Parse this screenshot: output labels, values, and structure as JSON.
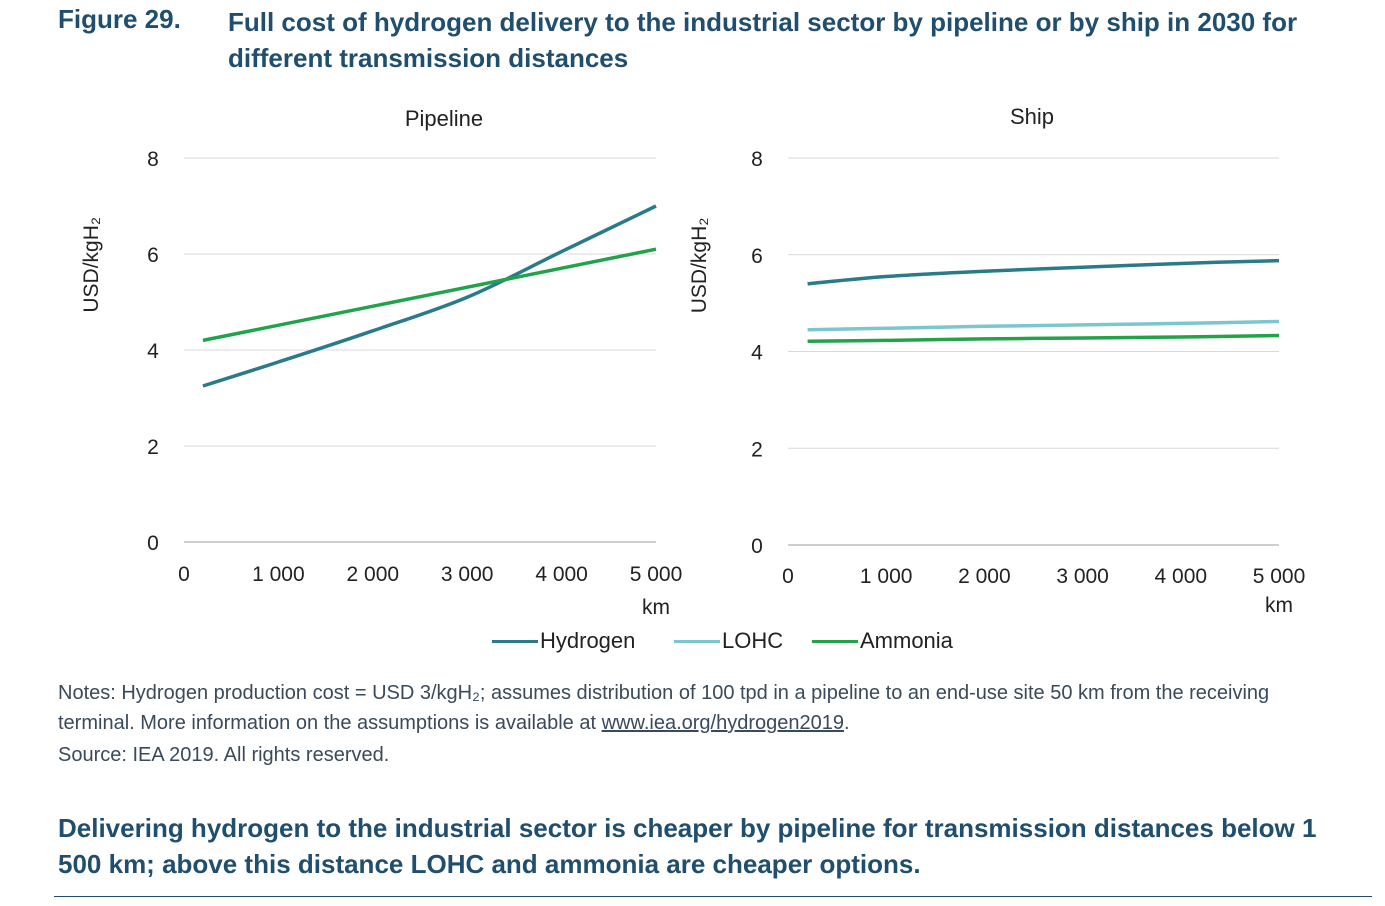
{
  "figure": {
    "number": "Figure 29.",
    "title": "Full cost of hydrogen delivery to the industrial sector by pipeline or by ship in 2030 for different transmission distances"
  },
  "colors": {
    "hydrogen": "#2a7b8a",
    "lohc": "#7cc6cf",
    "ammonia": "#22a34a",
    "grid": "#d9d9d9",
    "title": "#1f4e6e"
  },
  "chart_data": [
    {
      "type": "line",
      "title": "Pipeline",
      "xlabel": "km",
      "ylabel": "USD/kgH₂",
      "xlim": [
        0,
        5000
      ],
      "ylim": [
        0,
        8
      ],
      "xticks": [
        0,
        1000,
        2000,
        3000,
        4000,
        5000
      ],
      "xtick_labels": [
        "0",
        "1 000",
        "2 000",
        "3 000",
        "4 000",
        "5 000"
      ],
      "yticks": [
        0,
        2,
        4,
        6,
        8
      ],
      "ytick_labels": [
        "0",
        "2",
        "4",
        "6",
        "8"
      ],
      "grid": true,
      "series": [
        {
          "name": "Hydrogen",
          "color": "#2a7b8a",
          "x": [
            200,
            1000,
            2000,
            3000,
            4000,
            5000
          ],
          "y": [
            3.25,
            3.75,
            4.4,
            5.1,
            6.05,
            7.0
          ]
        },
        {
          "name": "Ammonia",
          "color": "#22a34a",
          "x": [
            200,
            5000
          ],
          "y": [
            4.2,
            6.1
          ]
        }
      ]
    },
    {
      "type": "line",
      "title": "Ship",
      "xlabel": "km",
      "ylabel": "USD/kgH₂",
      "xlim": [
        0,
        5000
      ],
      "ylim": [
        0,
        8
      ],
      "xticks": [
        0,
        1000,
        2000,
        3000,
        4000,
        5000
      ],
      "xtick_labels": [
        "0",
        "1 000",
        "2 000",
        "3 000",
        "4 000",
        "5 000"
      ],
      "yticks": [
        0,
        2,
        4,
        6,
        8
      ],
      "ytick_labels": [
        "0",
        "2",
        "4",
        "6",
        "8"
      ],
      "grid": true,
      "series": [
        {
          "name": "Hydrogen",
          "color": "#2a7b8a",
          "x": [
            200,
            1000,
            2000,
            3000,
            4000,
            5000
          ],
          "y": [
            5.4,
            5.55,
            5.66,
            5.74,
            5.82,
            5.88
          ]
        },
        {
          "name": "LOHC",
          "color": "#7cc6cf",
          "x": [
            200,
            1000,
            2000,
            3000,
            4000,
            5000
          ],
          "y": [
            4.45,
            4.48,
            4.52,
            4.55,
            4.58,
            4.62
          ]
        },
        {
          "name": "Ammonia",
          "color": "#22a34a",
          "x": [
            200,
            1000,
            2000,
            3000,
            4000,
            5000
          ],
          "y": [
            4.21,
            4.23,
            4.26,
            4.28,
            4.3,
            4.33
          ]
        }
      ]
    }
  ],
  "legend": [
    {
      "label": "Hydrogen",
      "color": "#2a7b8a"
    },
    {
      "label": "LOHC",
      "color": "#7cc6cf"
    },
    {
      "label": "Ammonia",
      "color": "#22a34a"
    }
  ],
  "notes": {
    "prefix": "Notes: Hydrogen production cost = USD 3/kgH₂; assumes distribution of 100 tpd in a pipeline to an end-use site 50 km from the receiving terminal. More information on the assumptions is available at ",
    "link": "www.iea.org/hydrogen2019",
    "suffix": "."
  },
  "source": "Source: IEA 2019. All rights reserved.",
  "takeaway": "Delivering hydrogen to the industrial sector is cheaper by pipeline for transmission distances below 1 500 km; above this distance LOHC and ammonia are cheaper options."
}
